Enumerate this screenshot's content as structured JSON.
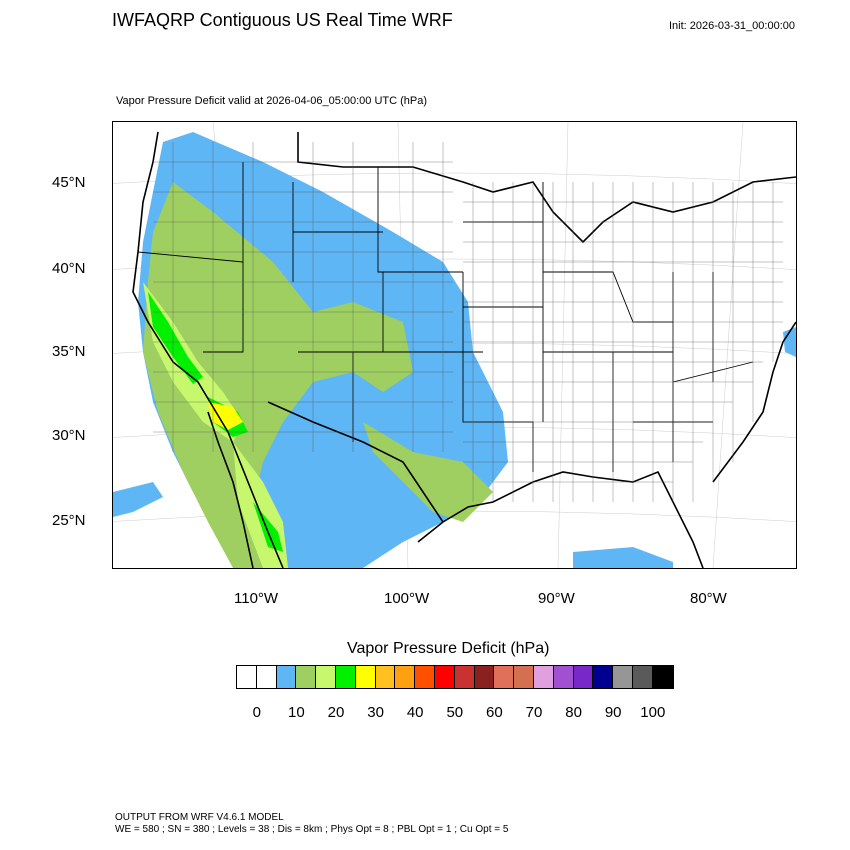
{
  "header": {
    "title": "IWFAQRP Contiguous US Real Time WRF",
    "init": "Init: 2026-03-31_00:00:00",
    "subtitle": "Vapor Pressure Deficit valid at 2026-04-06_05:00:00 UTC   (hPa)"
  },
  "map": {
    "lat_labels": [
      "45°N",
      "40°N",
      "35°N",
      "30°N",
      "25°N"
    ],
    "lon_labels": [
      "110°W",
      "100°W",
      "90°W",
      "80°W"
    ]
  },
  "colorbar": {
    "title": "Vapor Pressure Deficit  (hPa)",
    "colors": [
      "#ffffff",
      "#ffffff",
      "#5fb6f4",
      "#9fcf60",
      "#c6f76c",
      "#00f000",
      "#ffff00",
      "#ffc020",
      "#ffa010",
      "#ff5000",
      "#ff0000",
      "#c83230",
      "#8b2020",
      "#e0705a",
      "#d47050",
      "#e0a0e0",
      "#a050d0",
      "#7828c8",
      "#000090",
      "#969696",
      "#5a5a5a",
      "#000000"
    ],
    "labels": [
      "0",
      "10",
      "20",
      "30",
      "40",
      "50",
      "60",
      "70",
      "80",
      "90",
      "100"
    ]
  },
  "footer": {
    "line1": "OUTPUT FROM WRF V4.6.1 MODEL",
    "line2": "WE = 580 ; SN = 380 ; Levels = 38 ; Dis = 8km ; Phys Opt = 8 ; PBL Opt = 1 ; Cu Opt = 5"
  }
}
